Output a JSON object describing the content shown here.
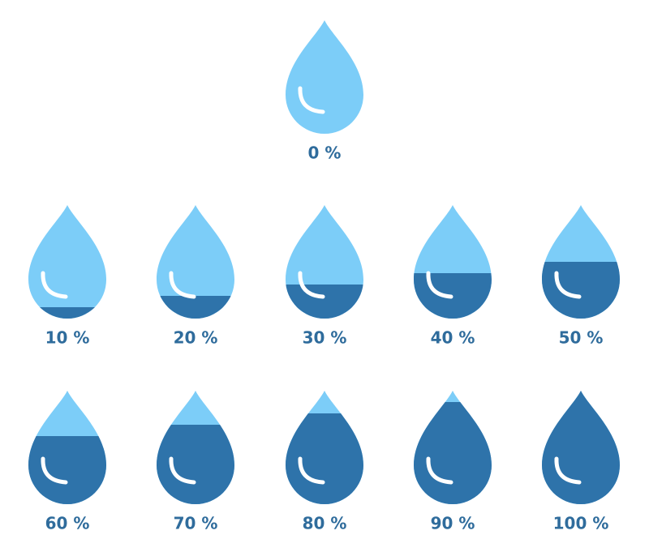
{
  "drops": [
    {
      "label": "0 %",
      "value": 0
    },
    {
      "label": "10 %",
      "value": 10
    },
    {
      "label": "20 %",
      "value": 20
    },
    {
      "label": "30 %",
      "value": 30
    },
    {
      "label": "40 %",
      "value": 40
    },
    {
      "label": "50 %",
      "value": 50
    },
    {
      "label": "60 %",
      "value": 60
    },
    {
      "label": "70 %",
      "value": 70
    },
    {
      "label": "80 %",
      "value": 80
    },
    {
      "label": "90 %",
      "value": 90
    },
    {
      "label": "100 %",
      "value": 100
    }
  ],
  "max": 100,
  "empty_color": "#7ccdf8",
  "fill_color": "#2e73aa",
  "label_color": "#2f6c9c"
}
